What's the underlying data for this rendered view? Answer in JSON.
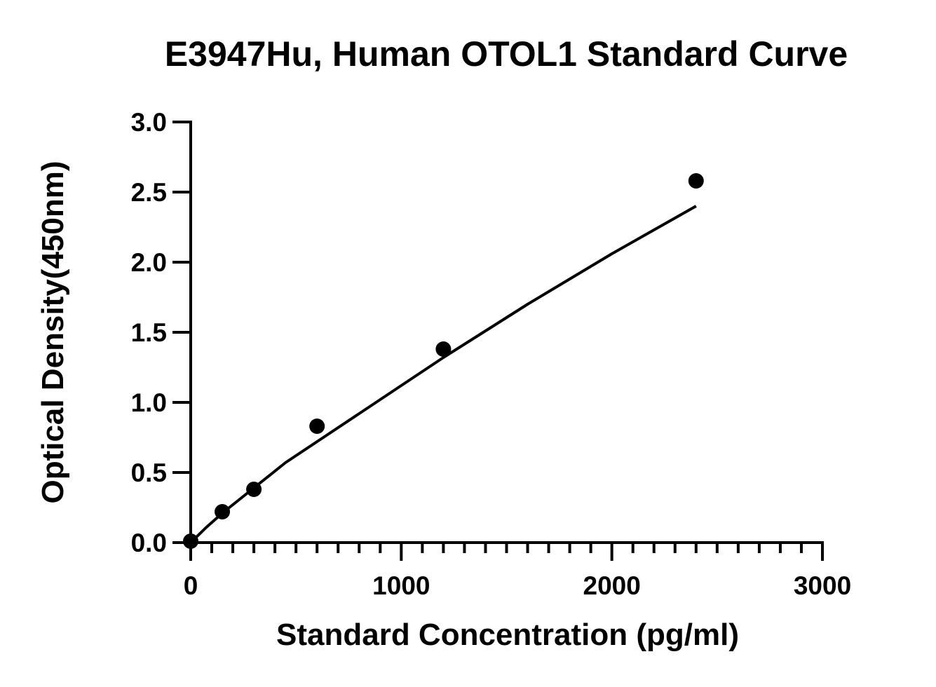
{
  "chart_data": {
    "type": "scatter",
    "title": "E3947Hu, Human OTOL1 Standard Curve",
    "xlabel": "Standard Concentration (pg/ml)",
    "ylabel": "Optical Density(450nm)",
    "xlim": [
      0,
      3000
    ],
    "ylim": [
      0,
      3.0
    ],
    "x_ticks": [
      0,
      1000,
      2000,
      3000
    ],
    "x_tick_labels": [
      "0",
      "1000",
      "2000",
      "3000"
    ],
    "x_minor_step": 100,
    "y_ticks": [
      0,
      0.5,
      1.0,
      1.5,
      2.0,
      2.5,
      3.0
    ],
    "y_tick_labels": [
      "0.0",
      "0.5",
      "1.0",
      "1.5",
      "2.0",
      "2.5",
      "3.0"
    ],
    "grid": false,
    "legend": "none",
    "series": [
      {
        "points": [
          {
            "x": 0,
            "y": 0.01
          },
          {
            "x": 150,
            "y": 0.22
          },
          {
            "x": 300,
            "y": 0.38
          },
          {
            "x": 600,
            "y": 0.83
          },
          {
            "x": 1200,
            "y": 1.38
          },
          {
            "x": 2400,
            "y": 2.58
          }
        ],
        "fit_curve": {
          "x": [
            0,
            75,
            150,
            300,
            450,
            600,
            800,
            1000,
            1200,
            1400,
            1600,
            1800,
            2000,
            2200,
            2400
          ],
          "y": [
            0.0,
            0.11,
            0.21,
            0.39,
            0.57,
            0.72,
            0.92,
            1.12,
            1.32,
            1.51,
            1.7,
            1.88,
            2.06,
            2.23,
            2.4
          ]
        }
      }
    ],
    "colors": {
      "marker": "#000000",
      "line": "#000000",
      "axis": "#000000",
      "background": "#ffffff"
    }
  }
}
